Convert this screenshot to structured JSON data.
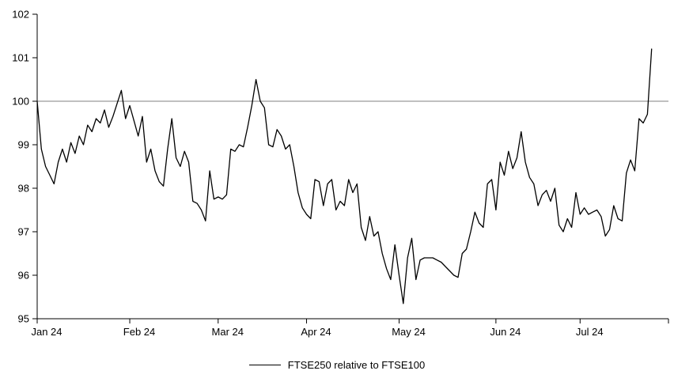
{
  "page": {
    "background": "#ffffff"
  },
  "chart_data": {
    "type": "line",
    "title": "",
    "xlabel": "",
    "ylabel": "",
    "ylim": [
      95,
      102
    ],
    "y_ticks": [
      95,
      96,
      97,
      98,
      99,
      100,
      101,
      102
    ],
    "x_tick_labels": [
      "Jan 24",
      "Feb 24",
      "Mar 24",
      "Apr 24",
      "May 24",
      "Jun 24",
      "Jul 24"
    ],
    "month_start_indices": [
      0,
      22,
      43,
      64,
      86,
      109,
      129
    ],
    "grid": "off",
    "axis_color": "#000000",
    "reference_line": {
      "value": 100,
      "color": "#808080"
    },
    "legend": {
      "label": "FTSE250 relative to FTSE100",
      "position": "bottom-center"
    },
    "series": [
      {
        "name": "FTSE250 relative to FTSE100",
        "color": "#000000",
        "values": [
          100.0,
          98.9,
          98.5,
          98.3,
          98.1,
          98.6,
          98.9,
          98.6,
          99.05,
          98.8,
          99.2,
          99.0,
          99.45,
          99.3,
          99.6,
          99.5,
          99.8,
          99.4,
          99.65,
          99.95,
          100.25,
          99.6,
          99.9,
          99.55,
          99.2,
          99.65,
          98.6,
          98.9,
          98.4,
          98.15,
          98.05,
          98.9,
          99.6,
          98.7,
          98.5,
          98.85,
          98.6,
          97.7,
          97.65,
          97.5,
          97.25,
          98.4,
          97.75,
          97.8,
          97.75,
          97.85,
          98.9,
          98.85,
          99.0,
          98.95,
          99.4,
          99.9,
          100.5,
          100.0,
          99.85,
          99.0,
          98.95,
          99.35,
          99.2,
          98.9,
          99.0,
          98.5,
          97.9,
          97.55,
          97.4,
          97.3,
          98.2,
          98.15,
          97.6,
          98.1,
          98.2,
          97.5,
          97.7,
          97.6,
          98.2,
          97.9,
          98.1,
          97.1,
          96.8,
          97.35,
          96.9,
          97.0,
          96.5,
          96.15,
          95.9,
          96.7,
          96.0,
          95.35,
          96.4,
          96.85,
          95.9,
          96.35,
          96.4,
          96.4,
          96.4,
          96.35,
          96.3,
          96.2,
          96.1,
          96.0,
          95.95,
          96.5,
          96.6,
          97.0,
          97.45,
          97.2,
          97.1,
          98.1,
          98.2,
          97.5,
          98.6,
          98.3,
          98.85,
          98.45,
          98.7,
          99.3,
          98.6,
          98.25,
          98.1,
          97.6,
          97.85,
          97.95,
          97.7,
          98.0,
          97.15,
          97.0,
          97.3,
          97.1,
          97.9,
          97.4,
          97.55,
          97.4,
          97.45,
          97.5,
          97.35,
          96.9,
          97.05,
          97.6,
          97.3,
          97.25,
          98.35,
          98.65,
          98.4,
          99.6,
          99.5,
          99.7,
          101.2
        ]
      }
    ]
  }
}
